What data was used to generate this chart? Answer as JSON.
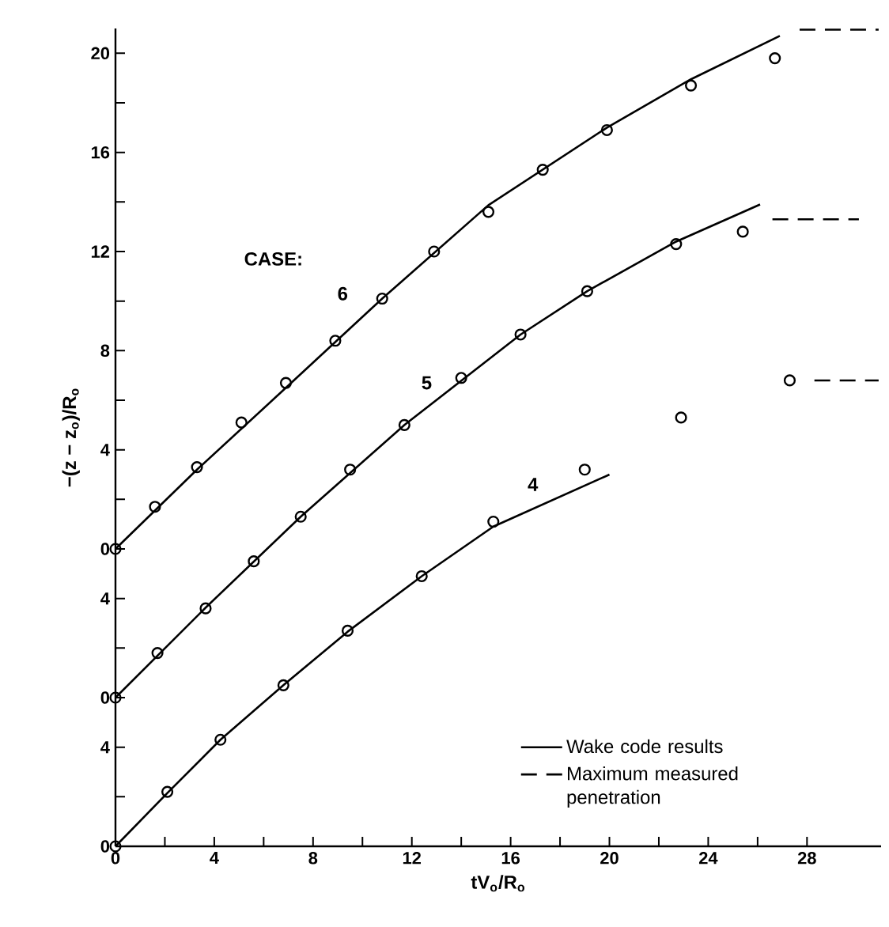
{
  "chart_data": {
    "type": "line",
    "xlabel": "tV$_{o}$/R$_{o}$",
    "ylabel": "−(z − z$_{o}$)/R$_{o}$",
    "xlim": [
      0,
      31
    ],
    "xticks": [
      0,
      {
        "value": 2,
        "label": null
      },
      4,
      {
        "value": 6,
        "label": null
      },
      8,
      {
        "value": 10,
        "label": null
      },
      12,
      {
        "value": 14,
        "label": null
      },
      16,
      {
        "value": 18,
        "label": null
      },
      20,
      {
        "value": 22,
        "label": null
      },
      24,
      {
        "value": 26,
        "label": null
      },
      28
    ],
    "ylim": [
      -12,
      21
    ],
    "yticks": [
      0,
      {
        "value": 2,
        "label": null
      },
      4,
      {
        "value": 6,
        "label": null
      },
      8,
      {
        "value": 10,
        "label": null
      },
      12,
      {
        "value": 14,
        "label": null
      },
      16,
      {
        "value": 18,
        "label": null
      },
      20
    ],
    "y2lim": [
      -6,
      27
    ],
    "y2ticks": [
      0,
      {
        "value": 2,
        "label": null
      },
      4
    ],
    "y3lim": [
      0,
      33
    ],
    "y3ticks": [
      0,
      {
        "value": 2,
        "label": null
      },
      4
    ],
    "legend": "bottom right",
    "series": [
      {
        "name": "Wake code results",
        "axis": "y",
        "color": "#000000",
        "line_style": "solid",
        "marker": "none",
        "x": [
          0,
          3.3,
          6.9,
          10.8,
          15.1,
          19.9,
          23.3,
          26.9
        ],
        "values": [
          0,
          3.2,
          6.5,
          10.1,
          13.87,
          17.0,
          18.95,
          20.7
        ]
      },
      {
        "name": "Maximum measured penetration",
        "axis": "y",
        "color": "#000000",
        "line_style": "dashed",
        "marker": "none",
        "x": [
          27.7,
          30.9
        ],
        "values": [
          20.95,
          20.95
        ]
      },
      {
        "type": "scatter",
        "axis": "y",
        "color": "#000000",
        "marker": "circle",
        "x": [
          0,
          1.6,
          3.3,
          5.1,
          6.9,
          8.9,
          10.8,
          12.9,
          15.1,
          17.3,
          19.9,
          23.3,
          26.7
        ],
        "values": [
          0,
          1.7,
          3.3,
          5.1,
          6.7,
          8.4,
          10.1,
          12.0,
          13.6,
          15.3,
          16.9,
          18.7,
          19.8
        ]
      },
      {
        "axis": "y2",
        "color": "#000000",
        "line_style": "solid",
        "marker": "none",
        "x": [
          0,
          3.65,
          7.5,
          11.7,
          16.4,
          19.1,
          22.7,
          26.1
        ],
        "values": [
          0,
          3.63,
          7.3,
          11.0,
          14.65,
          16.4,
          18.4,
          19.9
        ]
      },
      {
        "axis": "y2",
        "color": "#000000",
        "line_style": "dashed",
        "marker": "none",
        "x": [
          26.6,
          30.1
        ],
        "values": [
          19.3,
          19.3
        ]
      },
      {
        "type": "scatter",
        "axis": "y2",
        "color": "#000000",
        "marker": "circle",
        "x": [
          0,
          1.7,
          3.65,
          5.6,
          7.5,
          9.5,
          11.7,
          14.0,
          16.4,
          19.1,
          22.7,
          25.4
        ],
        "values": [
          0,
          1.8,
          3.6,
          5.5,
          7.3,
          9.2,
          11.0,
          12.9,
          14.65,
          16.4,
          18.3,
          18.8
        ]
      },
      {
        "axis": "y3",
        "color": "#000000",
        "line_style": "solid",
        "marker": "none",
        "x": [
          0,
          2.1,
          4.25,
          6.8,
          9.4,
          12.4,
          15.3,
          20.0
        ],
        "values": [
          0,
          2.15,
          4.3,
          6.5,
          8.66,
          10.9,
          12.9,
          15.0
        ]
      },
      {
        "axis": "y3",
        "color": "#000000",
        "line_style": "dashed",
        "marker": "none",
        "x": [
          28.3,
          30.9
        ],
        "values": [
          18.8,
          18.8
        ]
      },
      {
        "type": "scatter",
        "axis": "y3",
        "color": "#000000",
        "marker": "circle",
        "x": [
          0,
          2.1,
          4.25,
          6.8,
          9.4,
          12.4,
          15.3,
          19.0,
          22.9,
          27.3
        ],
        "values": [
          0,
          2.2,
          4.3,
          6.5,
          8.7,
          10.9,
          13.1,
          15.2,
          17.3,
          18.8
        ]
      }
    ],
    "annotations": [
      "CASE:",
      "6",
      "5",
      "4"
    ]
  }
}
